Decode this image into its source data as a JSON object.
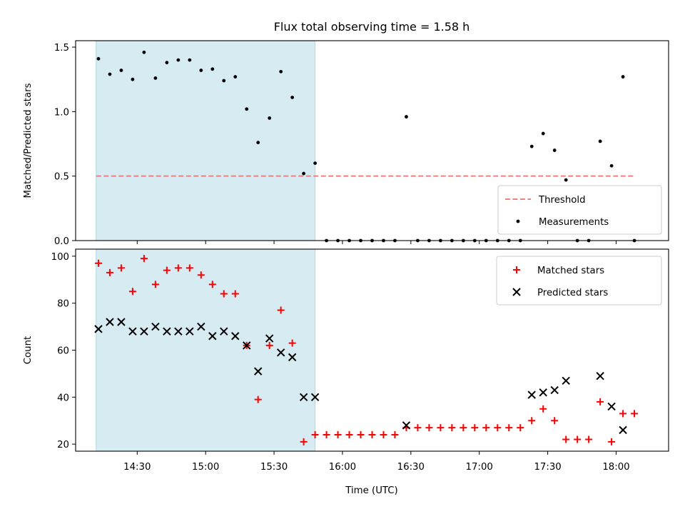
{
  "chart_data": {
    "type": "scatter",
    "title": "Flux total observing time = 1.58 h",
    "xlabel": "Time (UTC)",
    "x_ticks": [
      "14:30",
      "15:00",
      "15:30",
      "16:00",
      "16:30",
      "17:00",
      "17:30",
      "18:00"
    ],
    "x_range": [
      "14:03",
      "18:23"
    ],
    "highlight_span": {
      "start": "14:12",
      "end": "15:48",
      "color": "#add8e6"
    },
    "panels": [
      {
        "ylabel": "Matched/Predicted stars",
        "ylim": [
          0,
          1.55
        ],
        "y_ticks": [
          "0.0",
          "0.5",
          "1.0",
          "1.5"
        ],
        "legend_position": "bottom-right",
        "threshold": {
          "name": "Threshold",
          "value": 0.5,
          "x_start": "14:12",
          "x_end": "18:08",
          "color": "#f08080"
        },
        "series": [
          {
            "name": "Measurements",
            "marker": "dot",
            "color": "#000000",
            "points": [
              [
                "14:13",
                1.41
              ],
              [
                "14:18",
                1.29
              ],
              [
                "14:23",
                1.32
              ],
              [
                "14:28",
                1.25
              ],
              [
                "14:33",
                1.46
              ],
              [
                "14:38",
                1.26
              ],
              [
                "14:43",
                1.38
              ],
              [
                "14:48",
                1.4
              ],
              [
                "14:53",
                1.4
              ],
              [
                "14:58",
                1.32
              ],
              [
                "15:03",
                1.33
              ],
              [
                "15:08",
                1.24
              ],
              [
                "15:13",
                1.27
              ],
              [
                "15:18",
                1.02
              ],
              [
                "15:23",
                0.76
              ],
              [
                "15:28",
                0.95
              ],
              [
                "15:33",
                1.31
              ],
              [
                "15:38",
                1.11
              ],
              [
                "15:43",
                0.52
              ],
              [
                "15:48",
                0.6
              ],
              [
                "15:53",
                0
              ],
              [
                "15:58",
                0
              ],
              [
                "16:03",
                0
              ],
              [
                "16:08",
                0
              ],
              [
                "16:13",
                0
              ],
              [
                "16:18",
                0
              ],
              [
                "16:23",
                0
              ],
              [
                "16:28",
                0.96
              ],
              [
                "16:33",
                0
              ],
              [
                "16:38",
                0
              ],
              [
                "16:43",
                0
              ],
              [
                "16:48",
                0
              ],
              [
                "16:53",
                0
              ],
              [
                "16:58",
                0
              ],
              [
                "17:03",
                0
              ],
              [
                "17:08",
                0
              ],
              [
                "17:13",
                0
              ],
              [
                "17:18",
                0
              ],
              [
                "17:23",
                0.73
              ],
              [
                "17:28",
                0.83
              ],
              [
                "17:33",
                0.7
              ],
              [
                "17:38",
                0.47
              ],
              [
                "17:43",
                0
              ],
              [
                "17:48",
                0
              ],
              [
                "17:53",
                0.77
              ],
              [
                "17:58",
                0.58
              ],
              [
                "18:03",
                1.27
              ],
              [
                "18:08",
                0
              ]
            ]
          }
        ]
      },
      {
        "ylabel": "Count",
        "ylim": [
          17,
          103
        ],
        "y_ticks": [
          "20",
          "40",
          "60",
          "80",
          "100"
        ],
        "legend_position": "top-right",
        "series": [
          {
            "name": "Matched stars",
            "marker": "plus",
            "color": "#ff0000",
            "points": [
              [
                "14:13",
                97
              ],
              [
                "14:18",
                93
              ],
              [
                "14:23",
                95
              ],
              [
                "14:28",
                85
              ],
              [
                "14:33",
                99
              ],
              [
                "14:38",
                88
              ],
              [
                "14:43",
                94
              ],
              [
                "14:48",
                95
              ],
              [
                "14:53",
                95
              ],
              [
                "14:58",
                92
              ],
              [
                "15:03",
                88
              ],
              [
                "15:08",
                84
              ],
              [
                "15:13",
                84
              ],
              [
                "15:18",
                62
              ],
              [
                "15:23",
                39
              ],
              [
                "15:28",
                62
              ],
              [
                "15:33",
                77
              ],
              [
                "15:38",
                63
              ],
              [
                "15:43",
                21
              ],
              [
                "15:48",
                24
              ],
              [
                "15:53",
                24
              ],
              [
                "15:58",
                24
              ],
              [
                "16:03",
                24
              ],
              [
                "16:08",
                24
              ],
              [
                "16:13",
                24
              ],
              [
                "16:18",
                24
              ],
              [
                "16:23",
                24
              ],
              [
                "16:28",
                27
              ],
              [
                "16:33",
                27
              ],
              [
                "16:38",
                27
              ],
              [
                "16:43",
                27
              ],
              [
                "16:48",
                27
              ],
              [
                "16:53",
                27
              ],
              [
                "16:58",
                27
              ],
              [
                "17:03",
                27
              ],
              [
                "17:08",
                27
              ],
              [
                "17:13",
                27
              ],
              [
                "17:18",
                27
              ],
              [
                "17:23",
                30
              ],
              [
                "17:28",
                35
              ],
              [
                "17:33",
                30
              ],
              [
                "17:38",
                22
              ],
              [
                "17:43",
                22
              ],
              [
                "17:48",
                22
              ],
              [
                "17:53",
                38
              ],
              [
                "17:58",
                21
              ],
              [
                "18:03",
                33
              ],
              [
                "18:08",
                33
              ]
            ]
          },
          {
            "name": "Predicted stars",
            "marker": "x",
            "color": "#000000",
            "points": [
              [
                "14:13",
                69
              ],
              [
                "14:18",
                72
              ],
              [
                "14:23",
                72
              ],
              [
                "14:28",
                68
              ],
              [
                "14:33",
                68
              ],
              [
                "14:38",
                70
              ],
              [
                "14:43",
                68
              ],
              [
                "14:48",
                68
              ],
              [
                "14:53",
                68
              ],
              [
                "14:58",
                70
              ],
              [
                "15:03",
                66
              ],
              [
                "15:08",
                68
              ],
              [
                "15:13",
                66
              ],
              [
                "15:18",
                62
              ],
              [
                "15:23",
                51
              ],
              [
                "15:28",
                65
              ],
              [
                "15:33",
                59
              ],
              [
                "15:38",
                57
              ],
              [
                "15:43",
                40
              ],
              [
                "15:48",
                40
              ],
              [
                "16:28",
                28
              ],
              [
                "17:23",
                41
              ],
              [
                "17:28",
                42
              ],
              [
                "17:33",
                43
              ],
              [
                "17:38",
                47
              ],
              [
                "17:53",
                49
              ],
              [
                "17:58",
                36
              ],
              [
                "18:03",
                26
              ]
            ]
          }
        ]
      }
    ]
  }
}
